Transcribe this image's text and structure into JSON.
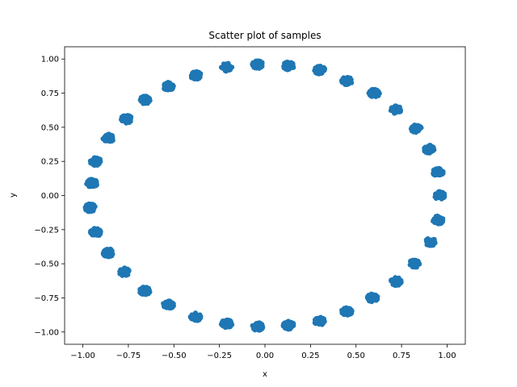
{
  "chart_data": {
    "type": "scatter",
    "title": "Scatter plot of samples",
    "xlabel": "x",
    "ylabel": "y",
    "xlim": [
      -1.1,
      1.1
    ],
    "ylim": [
      -1.09,
      1.09
    ],
    "xticks": [
      -1.0,
      -0.75,
      -0.5,
      -0.25,
      0.0,
      0.25,
      0.5,
      0.75,
      1.0
    ],
    "xtick_labels": [
      "−1.00",
      "−0.75",
      "−0.50",
      "−0.25",
      "0.00",
      "0.25",
      "0.50",
      "0.75",
      "1.00"
    ],
    "yticks": [
      -1.0,
      -0.75,
      -0.5,
      -0.25,
      0.0,
      0.25,
      0.5,
      0.75,
      1.0
    ],
    "ytick_labels": [
      "−1.00",
      "−0.75",
      "−0.50",
      "−0.25",
      "0.00",
      "0.25",
      "0.50",
      "0.75",
      "1.00"
    ],
    "grid": false,
    "legend": false,
    "marker_color": "#1f77b4",
    "cluster_centers": [
      {
        "x": -0.04,
        "y": 0.96
      },
      {
        "x": 0.13,
        "y": 0.95
      },
      {
        "x": 0.3,
        "y": 0.92
      },
      {
        "x": 0.45,
        "y": 0.84
      },
      {
        "x": 0.6,
        "y": 0.75
      },
      {
        "x": 0.72,
        "y": 0.63
      },
      {
        "x": 0.83,
        "y": 0.49
      },
      {
        "x": 0.9,
        "y": 0.34
      },
      {
        "x": 0.95,
        "y": 0.17
      },
      {
        "x": 0.96,
        "y": 0.0
      },
      {
        "x": 0.95,
        "y": -0.18
      },
      {
        "x": 0.91,
        "y": -0.34
      },
      {
        "x": 0.82,
        "y": -0.5
      },
      {
        "x": 0.72,
        "y": -0.63
      },
      {
        "x": 0.59,
        "y": -0.75
      },
      {
        "x": 0.45,
        "y": -0.85
      },
      {
        "x": 0.3,
        "y": -0.92
      },
      {
        "x": 0.13,
        "y": -0.95
      },
      {
        "x": -0.04,
        "y": -0.96
      },
      {
        "x": -0.21,
        "y": -0.94
      },
      {
        "x": -0.38,
        "y": -0.89
      },
      {
        "x": -0.53,
        "y": -0.8
      },
      {
        "x": -0.66,
        "y": -0.7
      },
      {
        "x": -0.77,
        "y": -0.56
      },
      {
        "x": -0.86,
        "y": -0.42
      },
      {
        "x": -0.93,
        "y": -0.27
      },
      {
        "x": -0.96,
        "y": -0.09
      },
      {
        "x": -0.95,
        "y": 0.09
      },
      {
        "x": -0.93,
        "y": 0.25
      },
      {
        "x": -0.86,
        "y": 0.42
      },
      {
        "x": -0.76,
        "y": 0.56
      },
      {
        "x": -0.66,
        "y": 0.7
      },
      {
        "x": -0.53,
        "y": 0.8
      },
      {
        "x": -0.38,
        "y": 0.88
      },
      {
        "x": -0.21,
        "y": 0.94
      }
    ],
    "cluster_spread": 0.03
  }
}
